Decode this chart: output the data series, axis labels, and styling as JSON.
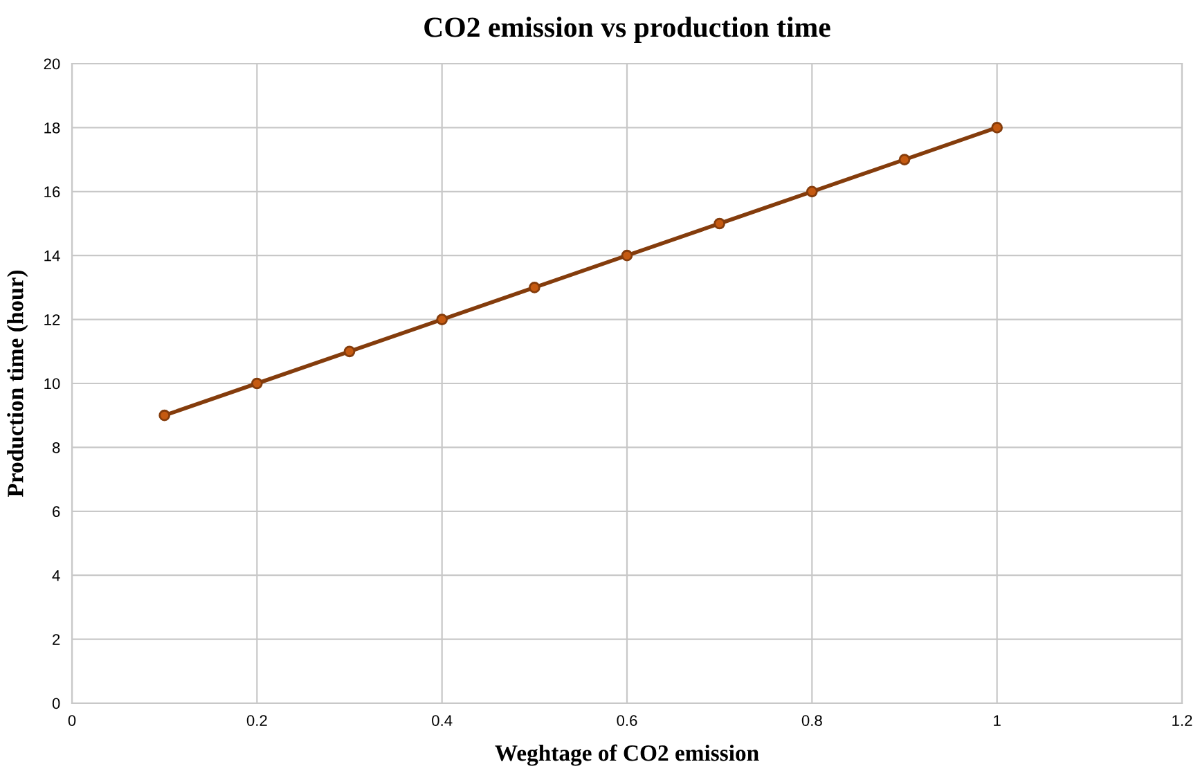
{
  "chart_data": {
    "type": "line",
    "title": "CO2 emission vs production time",
    "xlabel": "Weghtage of CO2 emission",
    "ylabel": "Production time (hour)",
    "x": [
      0.1,
      0.2,
      0.3,
      0.4,
      0.5,
      0.6,
      0.7,
      0.8,
      0.9,
      1.0
    ],
    "series": [
      {
        "color": "#843c0c",
        "values": [
          9,
          10,
          11,
          12,
          13,
          14,
          15,
          16,
          17,
          18
        ]
      }
    ],
    "marker": "circle",
    "line_style": "solid",
    "xlim": [
      0,
      1.2
    ],
    "xticks": [
      0,
      0.2,
      0.4,
      0.6,
      0.8,
      1,
      1.2
    ],
    "ylim": [
      0,
      20
    ],
    "yticks": [
      0,
      2,
      4,
      6,
      8,
      10,
      12,
      14,
      16,
      18,
      20
    ],
    "grid": true,
    "legend": false
  }
}
